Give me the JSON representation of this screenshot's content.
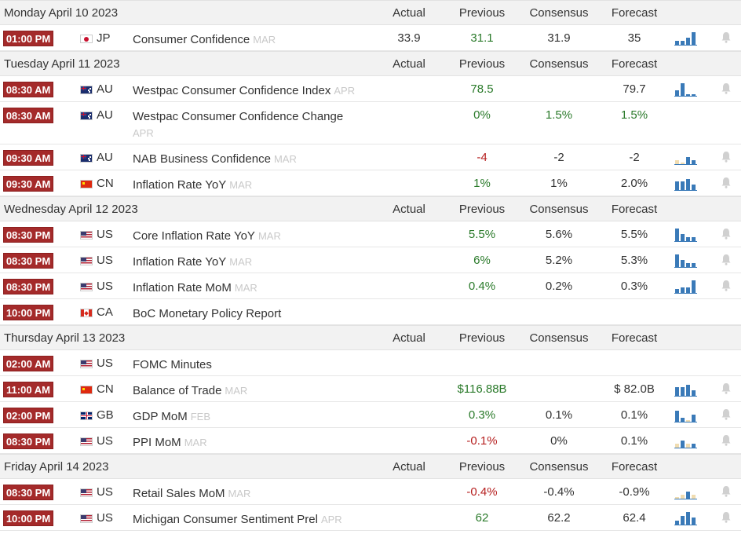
{
  "columns": {
    "actual": "Actual",
    "previous": "Previous",
    "consensus": "Consensus",
    "forecast": "Forecast"
  },
  "colors": {
    "time_badge": "#a42a2a",
    "positive": "#2a7a2a",
    "negative": "#b62020",
    "spark_blue": "#3a7ab8",
    "spark_yellow": "#f0dcb0",
    "bell": "#d0d0d0"
  },
  "days": [
    {
      "date": "Monday April 10 2023",
      "events": [
        {
          "time": "01:00 PM",
          "flag": "jp",
          "country": "JP",
          "event": "Consumer Confidence",
          "ref": "MAR",
          "actual": "33.9",
          "previous": "31.1",
          "previous_tone": "pos",
          "consensus": "31.9",
          "forecast": "35",
          "spark": [
            2,
            2,
            4,
            7
          ],
          "spark_colors": [
            "b",
            "b",
            "b",
            "b"
          ],
          "bell": true
        }
      ]
    },
    {
      "date": "Tuesday April 11 2023",
      "events": [
        {
          "time": "08:30 AM",
          "flag": "au",
          "country": "AU",
          "event": "Westpac Consumer Confidence Index",
          "ref": "APR",
          "actual": "",
          "previous": "78.5",
          "previous_tone": "pos",
          "consensus": "",
          "forecast": "79.7",
          "spark": [
            3,
            7,
            1,
            1
          ],
          "spark_colors": [
            "b",
            "b",
            "b",
            "b"
          ],
          "bell": true
        },
        {
          "time": "08:30 AM",
          "flag": "au",
          "country": "AU",
          "event": "Westpac Consumer Confidence Change",
          "ref": "APR",
          "ref_newline": true,
          "actual": "",
          "previous": "0%",
          "previous_tone": "pos",
          "consensus": "1.5%",
          "consensus_tone": "pos",
          "forecast": "1.5%",
          "forecast_tone": "pos",
          "spark": [],
          "bell": false
        },
        {
          "time": "09:30 AM",
          "flag": "au",
          "country": "AU",
          "event": "NAB Business Confidence",
          "ref": "MAR",
          "actual": "",
          "previous": "-4",
          "previous_tone": "neg",
          "consensus": "-2",
          "forecast": "-2",
          "spark": [
            2,
            1,
            4,
            2
          ],
          "spark_colors": [
            "y",
            "y",
            "b",
            "b"
          ],
          "bell": true
        },
        {
          "time": "09:30 AM",
          "flag": "cn",
          "country": "CN",
          "event": "Inflation Rate YoY",
          "ref": "MAR",
          "actual": "",
          "previous": "1%",
          "previous_tone": "pos",
          "consensus": "1%",
          "forecast": "2.0%",
          "spark": [
            5,
            5,
            6,
            3
          ],
          "spark_colors": [
            "b",
            "b",
            "b",
            "b"
          ],
          "bell": true
        }
      ]
    },
    {
      "date": "Wednesday April 12 2023",
      "events": [
        {
          "time": "08:30 PM",
          "flag": "us",
          "country": "US",
          "event": "Core Inflation Rate YoY",
          "ref": "MAR",
          "actual": "",
          "previous": "5.5%",
          "previous_tone": "pos",
          "consensus": "5.6%",
          "forecast": "5.5%",
          "spark": [
            7,
            4,
            2,
            2
          ],
          "spark_colors": [
            "b",
            "b",
            "b",
            "b"
          ],
          "bell": true
        },
        {
          "time": "08:30 PM",
          "flag": "us",
          "country": "US",
          "event": "Inflation Rate YoY",
          "ref": "MAR",
          "actual": "",
          "previous": "6%",
          "previous_tone": "pos",
          "consensus": "5.2%",
          "forecast": "5.3%",
          "spark": [
            7,
            4,
            2,
            2
          ],
          "spark_colors": [
            "b",
            "b",
            "b",
            "b"
          ],
          "bell": true
        },
        {
          "time": "08:30 PM",
          "flag": "us",
          "country": "US",
          "event": "Inflation Rate MoM",
          "ref": "MAR",
          "actual": "",
          "previous": "0.4%",
          "previous_tone": "pos",
          "consensus": "0.2%",
          "forecast": "0.3%",
          "spark": [
            2,
            3,
            3,
            7
          ],
          "spark_colors": [
            "b",
            "b",
            "b",
            "b"
          ],
          "bell": true
        },
        {
          "time": "10:00 PM",
          "flag": "ca",
          "country": "CA",
          "event": "BoC Monetary Policy Report",
          "ref": "",
          "actual": "",
          "previous": "",
          "consensus": "",
          "forecast": "",
          "spark": [],
          "bell": false
        }
      ]
    },
    {
      "date": "Thursday April 13 2023",
      "events": [
        {
          "time": "02:00 AM",
          "flag": "us",
          "country": "US",
          "event": "FOMC Minutes",
          "ref": "",
          "actual": "",
          "previous": "",
          "consensus": "",
          "forecast": "",
          "spark": [],
          "bell": false
        },
        {
          "time": "11:00 AM",
          "flag": "cn",
          "country": "CN",
          "event": "Balance of Trade",
          "ref": "MAR",
          "actual": "",
          "previous": "$116.88B",
          "previous_tone": "pos",
          "consensus": "",
          "forecast": "$ 82.0B",
          "spark": [
            5,
            5,
            6,
            3
          ],
          "spark_colors": [
            "b",
            "b",
            "b",
            "b"
          ],
          "bell": true
        },
        {
          "time": "02:00 PM",
          "flag": "gb",
          "country": "GB",
          "event": "GDP MoM",
          "ref": "FEB",
          "actual": "",
          "previous": "0.3%",
          "previous_tone": "pos",
          "consensus": "0.1%",
          "forecast": "0.1%",
          "spark": [
            6,
            2,
            1,
            4
          ],
          "spark_colors": [
            "b",
            "b",
            "y",
            "b"
          ],
          "bell": true
        },
        {
          "time": "08:30 PM",
          "flag": "us",
          "country": "US",
          "event": "PPI MoM",
          "ref": "MAR",
          "actual": "",
          "previous": "-0.1%",
          "previous_tone": "neg",
          "consensus": "0%",
          "forecast": "0.1%",
          "spark": [
            2,
            4,
            2,
            2
          ],
          "spark_colors": [
            "y",
            "b",
            "y",
            "b"
          ],
          "bell": true
        }
      ]
    },
    {
      "date": "Friday April 14 2023",
      "events": [
        {
          "time": "08:30 PM",
          "flag": "us",
          "country": "US",
          "event": "Retail Sales MoM",
          "ref": "MAR",
          "actual": "",
          "previous": "-0.4%",
          "previous_tone": "neg",
          "consensus": "-0.4%",
          "forecast": "-0.9%",
          "spark": [
            1,
            2,
            4,
            2
          ],
          "spark_colors": [
            "y",
            "y",
            "b",
            "y"
          ],
          "bell": true
        },
        {
          "time": "10:00 PM",
          "flag": "us",
          "country": "US",
          "event": "Michigan Consumer Sentiment Prel",
          "ref": "APR",
          "actual": "",
          "previous": "62",
          "previous_tone": "pos",
          "consensus": "62.2",
          "forecast": "62.4",
          "spark": [
            2,
            5,
            7,
            4
          ],
          "spark_colors": [
            "b",
            "b",
            "b",
            "b"
          ],
          "bell": true
        }
      ]
    }
  ]
}
